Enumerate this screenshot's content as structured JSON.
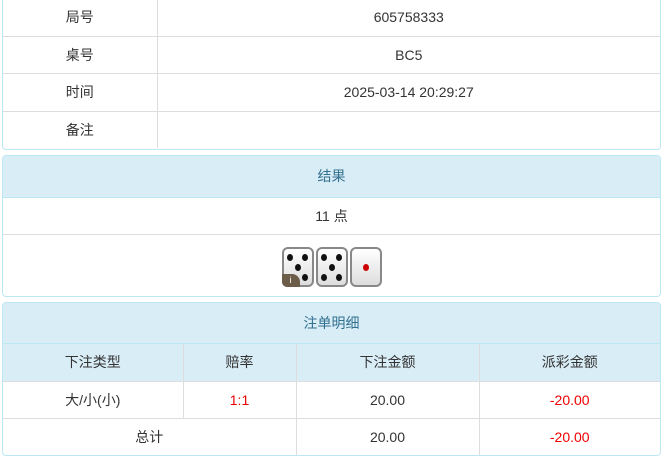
{
  "info": [
    {
      "label": "局号",
      "value": "605758333"
    },
    {
      "label": "桌号",
      "value": "BC5"
    },
    {
      "label": "时间",
      "value": "2025-03-14 20:29:27"
    },
    {
      "label": "备注",
      "value": ""
    }
  ],
  "result": {
    "title": "结果",
    "points": "11 点",
    "dice": [
      5,
      5,
      1
    ],
    "info_badge": "i"
  },
  "bets": {
    "title": "注单明细",
    "headers": [
      "下注类型",
      "赔率",
      "下注金额",
      "派彩金额"
    ],
    "rows": [
      {
        "type": "大/小(小)",
        "odds": "1:1",
        "amount": "20.00",
        "payout": "-20.00"
      }
    ],
    "total": {
      "label": "总计",
      "amount": "20.00",
      "payout": "-20.00"
    }
  },
  "colors": {
    "header_bg": "#d9edf7",
    "header_text": "#31708f",
    "negative": "#e00000"
  }
}
